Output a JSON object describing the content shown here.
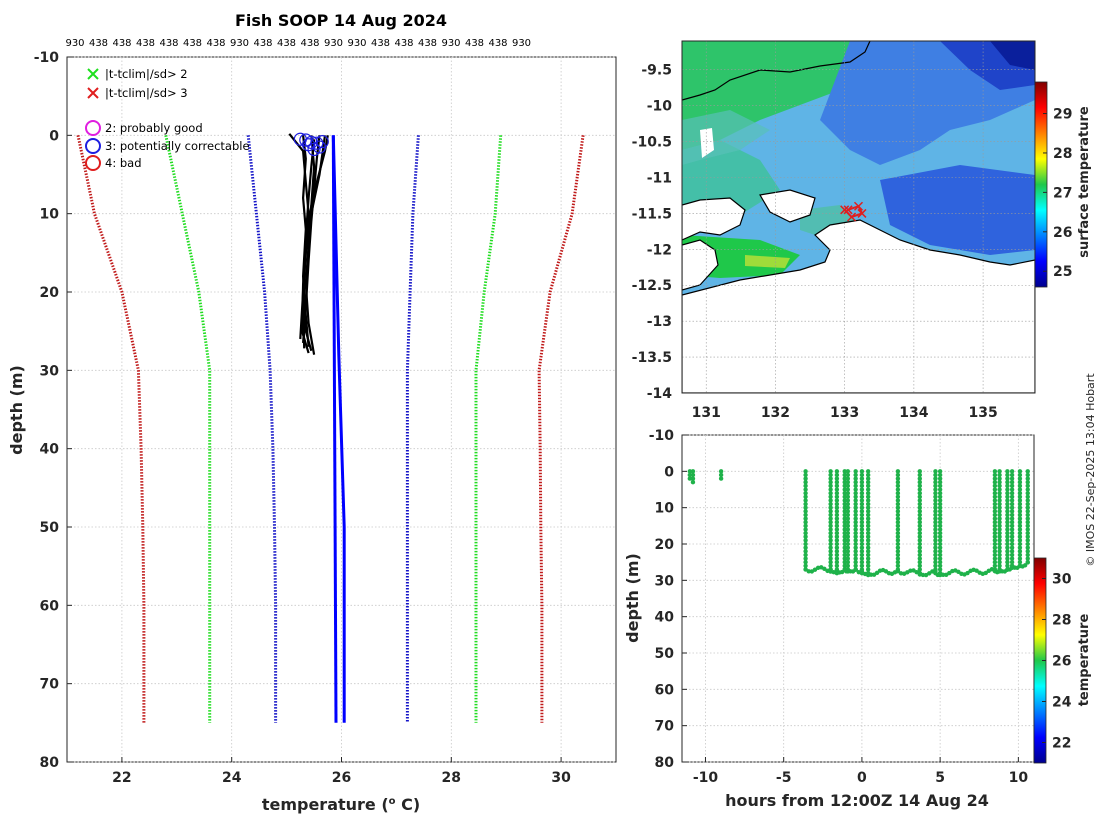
{
  "chart_data": [
    {
      "type": "line",
      "title": "Fish SOOP 14 Aug 2024",
      "top_labels": [
        "930",
        "438",
        "438",
        "438",
        "438",
        "438",
        "438",
        "930",
        "438",
        "438",
        "438",
        "930",
        "930",
        "438",
        "438",
        "438",
        "930",
        "438",
        "438",
        "930"
      ],
      "xlabel": "temperature (",
      "xlabel_unit": "o",
      "xlabel_suffix": " C)",
      "ylabel": "depth (m)",
      "xlim": [
        21,
        31
      ],
      "ylim": [
        -10,
        80
      ],
      "xticks": [
        22,
        24,
        26,
        28,
        30
      ],
      "yticks": [
        -10,
        0,
        10,
        20,
        30,
        40,
        50,
        60,
        70,
        80
      ],
      "legend": [
        {
          "marker": "x",
          "color": "#1ee01e",
          "label": "|t-tclim|/sd> 2"
        },
        {
          "marker": "x",
          "color": "#e01e1e",
          "label": "|t-tclim|/sd> 3"
        },
        {
          "marker": "o",
          "color": "#e01ee0",
          "label": "2: probably good"
        },
        {
          "marker": "o",
          "color": "#1e1ee0",
          "label": "3: potentially correctable"
        },
        {
          "marker": "o",
          "color": "#e01e1e",
          "label": "4: bad"
        }
      ],
      "climatology": {
        "depth": [
          0,
          10,
          20,
          30,
          40,
          50,
          60,
          75
        ],
        "series": [
          {
            "name": "clim-3sd",
            "color": "#c01a1a",
            "values": [
              21.2,
              21.5,
              22.0,
              22.3,
              22.35,
              22.38,
              22.4,
              22.4
            ]
          },
          {
            "name": "clim-2sd",
            "color": "#22dd22",
            "values": [
              22.8,
              23.1,
              23.4,
              23.6,
              23.6,
              23.6,
              23.6,
              23.6
            ]
          },
          {
            "name": "clim-1sd",
            "color": "#1414c8",
            "values": [
              24.3,
              24.45,
              24.6,
              24.7,
              24.75,
              24.78,
              24.8,
              24.8
            ]
          },
          {
            "name": "clim+1sd",
            "color": "#1414c8",
            "values": [
              27.4,
              27.3,
              27.25,
              27.2,
              27.2,
              27.2,
              27.2,
              27.2
            ]
          },
          {
            "name": "clim+2sd",
            "color": "#22dd22",
            "values": [
              28.9,
              28.8,
              28.6,
              28.45,
              28.45,
              28.45,
              28.45,
              28.45
            ]
          },
          {
            "name": "clim+3sd",
            "color": "#c01a1a",
            "values": [
              30.4,
              30.2,
              29.8,
              29.6,
              29.62,
              29.63,
              29.65,
              29.65
            ]
          }
        ]
      },
      "mean_profiles": [
        {
          "name": "mean-a",
          "color": "#0000ff",
          "depth": [
            0,
            75
          ],
          "values": [
            25.85,
            25.9
          ]
        },
        {
          "name": "mean-b",
          "color": "#0000ff",
          "depth": [
            0,
            28,
            50,
            75
          ],
          "values": [
            25.85,
            25.95,
            26.05,
            26.05
          ]
        }
      ],
      "profiles_color": "#000000",
      "profiles": [
        {
          "depth": [
            -0.2,
            2,
            6,
            10,
            15,
            20,
            25,
            27.5
          ],
          "values": [
            25.05,
            25.3,
            25.35,
            25.4,
            25.35,
            25.3,
            25.35,
            25.45
          ]
        },
        {
          "depth": [
            0,
            3,
            8,
            12,
            18,
            23,
            27
          ],
          "values": [
            25.3,
            25.35,
            25.3,
            25.35,
            25.3,
            25.35,
            25.4
          ]
        },
        {
          "depth": [
            0,
            4,
            9,
            14,
            19,
            24,
            28
          ],
          "values": [
            25.45,
            25.5,
            25.45,
            25.4,
            25.35,
            25.4,
            25.5
          ]
        },
        {
          "depth": [
            0,
            3,
            7,
            11,
            16,
            22,
            26.5
          ],
          "values": [
            25.6,
            25.55,
            25.5,
            25.45,
            25.4,
            25.35,
            25.3
          ]
        },
        {
          "depth": [
            0,
            5,
            10,
            15,
            20,
            26
          ],
          "values": [
            25.7,
            25.6,
            25.45,
            25.35,
            25.3,
            25.25
          ]
        },
        {
          "depth": [
            0.5,
            4,
            8,
            13,
            19,
            25,
            27.8
          ],
          "values": [
            25.5,
            25.45,
            25.4,
            25.35,
            25.3,
            25.28,
            25.4
          ]
        },
        {
          "depth": [
            0,
            2,
            6,
            9,
            14,
            21,
            27.2
          ],
          "values": [
            25.75,
            25.7,
            25.55,
            25.45,
            25.35,
            25.3,
            25.32
          ]
        }
      ],
      "flag_circles": {
        "color": "#1e1ee0",
        "points": [
          [
            25.25,
            0.5
          ],
          [
            25.35,
            0.6
          ],
          [
            25.45,
            0.9
          ],
          [
            25.55,
            1.0
          ],
          [
            25.65,
            0.8
          ],
          [
            25.5,
            1.8
          ],
          [
            25.6,
            1.5
          ],
          [
            25.4,
            1.2
          ]
        ]
      }
    },
    {
      "type": "heatmap",
      "name": "map",
      "xlim": [
        130.65,
        135.75
      ],
      "ylim": [
        -14,
        -9.1
      ],
      "xticks": [
        131,
        132,
        133,
        134,
        135
      ],
      "yticks": [
        -9.5,
        -10,
        -10.5,
        -11,
        -11.5,
        -12,
        -12.5,
        -13,
        -13.5,
        -14
      ],
      "ytick_labels": [
        "-9.5",
        "-10",
        "-10.5",
        "-11",
        "-11.5",
        "-12",
        "-12.5",
        "-13",
        "-13.5",
        "-14"
      ],
      "colorbar": {
        "label": "surface temperature",
        "range": [
          24.6,
          29.8
        ],
        "ticks": [
          25,
          26,
          27,
          28,
          29
        ]
      },
      "track": {
        "color": "#e01e1e",
        "lon": [
          133.0,
          133.1,
          133.25,
          133.2,
          133.05
        ],
        "lat": [
          -11.45,
          -11.55,
          -11.5,
          -11.4,
          -11.45
        ]
      }
    },
    {
      "type": "scatter",
      "name": "time-depth",
      "xlabel": "hours from 12:00Z 14 Aug 24",
      "ylabel": "depth (m)",
      "xlim": [
        -11.5,
        11
      ],
      "ylim": [
        -10,
        80
      ],
      "xticks": [
        -10,
        -5,
        0,
        5,
        10
      ],
      "yticks": [
        -10,
        0,
        10,
        20,
        30,
        40,
        50,
        60,
        70,
        80
      ],
      "marker_color": "#1fb24a",
      "colorbar": {
        "label": "temperature",
        "range": [
          21,
          31
        ],
        "ticks": [
          22,
          24,
          26,
          28,
          30
        ]
      },
      "casts": [
        {
          "t": -11.0,
          "max_depth": 2.5
        },
        {
          "t": -10.8,
          "max_depth": 3.0
        },
        {
          "t": -9.0,
          "max_depth": 2.0
        },
        {
          "t": -3.6,
          "max_depth": 27
        },
        {
          "t": -2.0,
          "max_depth": 27
        },
        {
          "t": -1.6,
          "max_depth": 27.5
        },
        {
          "t": -1.1,
          "max_depth": 27
        },
        {
          "t": -0.9,
          "max_depth": 27
        },
        {
          "t": -0.4,
          "max_depth": 27
        },
        {
          "t": 0.0,
          "max_depth": 27.5
        },
        {
          "t": 0.4,
          "max_depth": 28
        },
        {
          "t": 2.3,
          "max_depth": 27.5
        },
        {
          "t": 3.7,
          "max_depth": 28
        },
        {
          "t": 4.7,
          "max_depth": 28
        },
        {
          "t": 5.0,
          "max_depth": 28
        },
        {
          "t": 8.5,
          "max_depth": 27.5
        },
        {
          "t": 8.8,
          "max_depth": 27
        },
        {
          "t": 9.3,
          "max_depth": 27
        },
        {
          "t": 9.6,
          "max_depth": 26
        },
        {
          "t": 10.1,
          "max_depth": 26
        },
        {
          "t": 10.6,
          "max_depth": 25
        }
      ]
    }
  ],
  "credit": "© IMOS 22-Sep-2025 13:04 Hobart"
}
